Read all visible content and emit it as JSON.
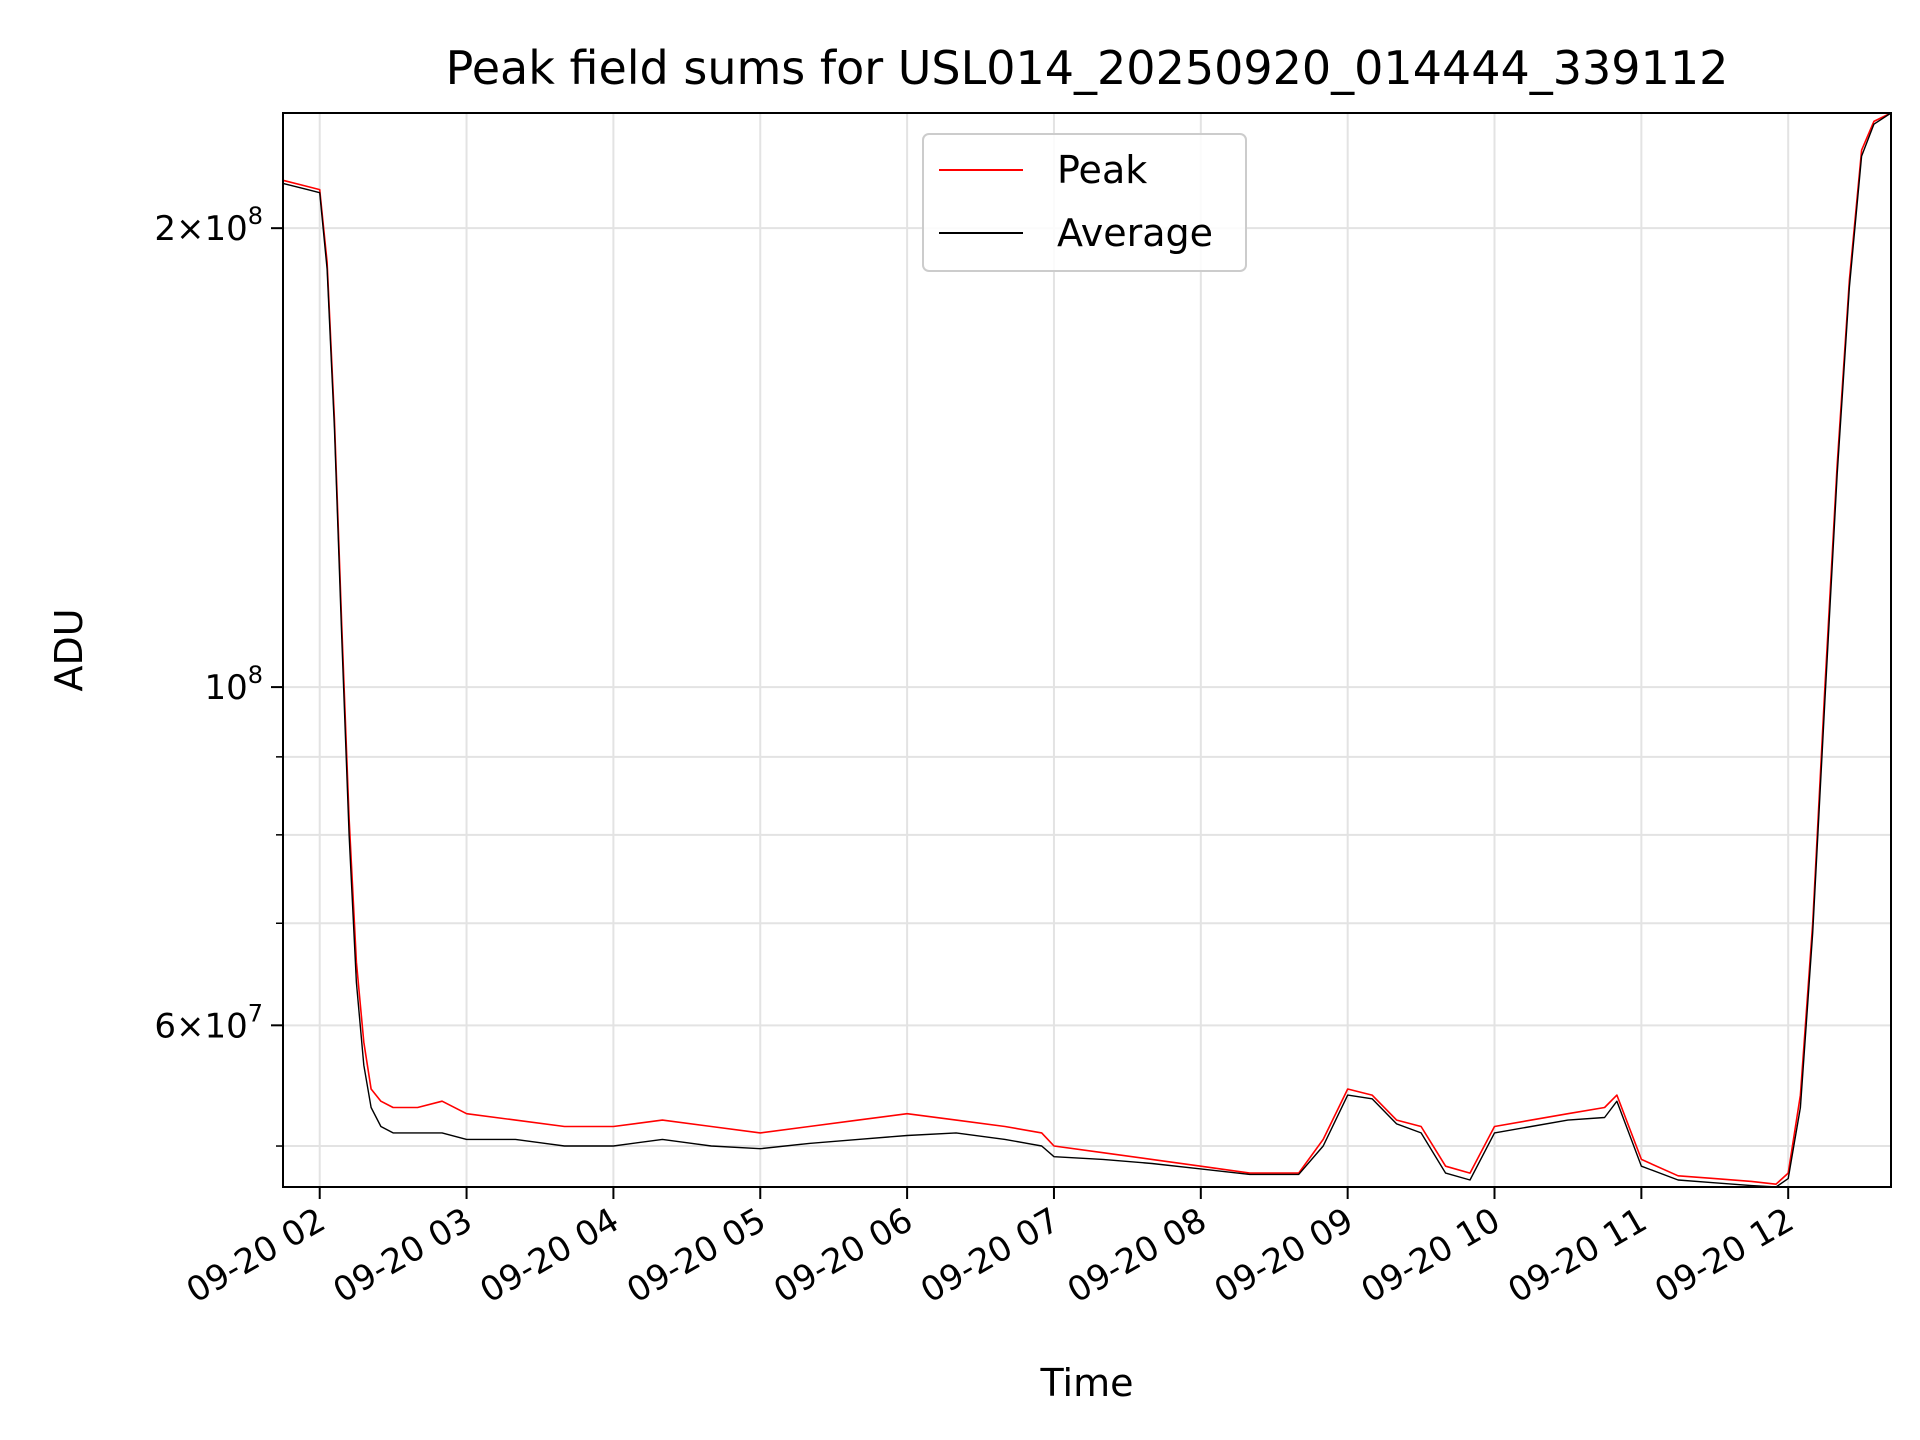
{
  "chart_data": {
    "type": "line",
    "title": "Peak field sums for USL014_20250920_014444_339112",
    "xlabel": "Time",
    "ylabel": "ADU",
    "yscale": "log",
    "ylim": [
      47000000,
      238000000
    ],
    "xlim": [
      "2025-09-20 01:45",
      "2025-09-20 12:42"
    ],
    "grid": true,
    "legend_position": "upper center",
    "x_tick_labels": [
      "09-20 02",
      "09-20 03",
      "09-20 04",
      "09-20 05",
      "09-20 06",
      "09-20 07",
      "09-20 08",
      "09-20 09",
      "09-20 10",
      "09-20 11",
      "09-20 12"
    ],
    "x_tick_values": [
      "2025-09-20 02:00",
      "2025-09-20 03:00",
      "2025-09-20 04:00",
      "2025-09-20 05:00",
      "2025-09-20 06:00",
      "2025-09-20 07:00",
      "2025-09-20 08:00",
      "2025-09-20 09:00",
      "2025-09-20 10:00",
      "2025-09-20 11:00",
      "2025-09-20 12:00"
    ],
    "y_major_ticks": [
      {
        "value": 200000000,
        "mantissa": "2",
        "exponent": "8"
      },
      {
        "value": 100000000,
        "mantissa": "",
        "exponent": "8"
      },
      {
        "value": 60000000,
        "mantissa": "6",
        "exponent": "7"
      }
    ],
    "y_minor_ticks": [
      50000000,
      70000000,
      80000000,
      90000000
    ],
    "series": [
      {
        "name": "Peak",
        "color": "#ff0000",
        "x": [
          "2025-09-20 01:45",
          "2025-09-20 01:55",
          "2025-09-20 02:00",
          "2025-09-20 02:03",
          "2025-09-20 02:06",
          "2025-09-20 02:09",
          "2025-09-20 02:12",
          "2025-09-20 02:15",
          "2025-09-20 02:18",
          "2025-09-20 02:21",
          "2025-09-20 02:25",
          "2025-09-20 02:30",
          "2025-09-20 02:40",
          "2025-09-20 02:50",
          "2025-09-20 03:00",
          "2025-09-20 03:20",
          "2025-09-20 03:40",
          "2025-09-20 04:00",
          "2025-09-20 04:20",
          "2025-09-20 04:40",
          "2025-09-20 05:00",
          "2025-09-20 05:20",
          "2025-09-20 05:40",
          "2025-09-20 06:00",
          "2025-09-20 06:20",
          "2025-09-20 06:40",
          "2025-09-20 06:55",
          "2025-09-20 07:00",
          "2025-09-20 07:20",
          "2025-09-20 07:40",
          "2025-09-20 08:00",
          "2025-09-20 08:20",
          "2025-09-20 08:40",
          "2025-09-20 08:50",
          "2025-09-20 09:00",
          "2025-09-20 09:10",
          "2025-09-20 09:20",
          "2025-09-20 09:30",
          "2025-09-20 09:40",
          "2025-09-20 09:50",
          "2025-09-20 10:00",
          "2025-09-20 10:15",
          "2025-09-20 10:30",
          "2025-09-20 10:45",
          "2025-09-20 10:50",
          "2025-09-20 11:00",
          "2025-09-20 11:15",
          "2025-09-20 11:30",
          "2025-09-20 11:45",
          "2025-09-20 11:55",
          "2025-09-20 12:00",
          "2025-09-20 12:05",
          "2025-09-20 12:10",
          "2025-09-20 12:15",
          "2025-09-20 12:20",
          "2025-09-20 12:25",
          "2025-09-20 12:30",
          "2025-09-20 12:35",
          "2025-09-20 12:42"
        ],
        "y": [
          215000000,
          213000000,
          212000000,
          190000000,
          150000000,
          110000000,
          82000000,
          66000000,
          58500000,
          54500000,
          53500000,
          53000000,
          53000000,
          53500000,
          52500000,
          52000000,
          51500000,
          51500000,
          52000000,
          51500000,
          51000000,
          51500000,
          52000000,
          52500000,
          52000000,
          51500000,
          51000000,
          50000000,
          49500000,
          49000000,
          48500000,
          48000000,
          48000000,
          50500000,
          54500000,
          54000000,
          52000000,
          51500000,
          48500000,
          48000000,
          51500000,
          52000000,
          52500000,
          53000000,
          54000000,
          49000000,
          47800000,
          47600000,
          47400000,
          47200000,
          48000000,
          54000000,
          70000000,
          100000000,
          140000000,
          185000000,
          225000000,
          235000000,
          238000000
        ]
      },
      {
        "name": "Average",
        "color": "#000000",
        "x": [
          "2025-09-20 01:45",
          "2025-09-20 01:55",
          "2025-09-20 02:00",
          "2025-09-20 02:03",
          "2025-09-20 02:06",
          "2025-09-20 02:09",
          "2025-09-20 02:12",
          "2025-09-20 02:15",
          "2025-09-20 02:18",
          "2025-09-20 02:21",
          "2025-09-20 02:25",
          "2025-09-20 02:30",
          "2025-09-20 02:40",
          "2025-09-20 02:50",
          "2025-09-20 03:00",
          "2025-09-20 03:20",
          "2025-09-20 03:40",
          "2025-09-20 04:00",
          "2025-09-20 04:20",
          "2025-09-20 04:40",
          "2025-09-20 05:00",
          "2025-09-20 05:20",
          "2025-09-20 05:40",
          "2025-09-20 06:00",
          "2025-09-20 06:20",
          "2025-09-20 06:40",
          "2025-09-20 06:55",
          "2025-09-20 07:00",
          "2025-09-20 07:20",
          "2025-09-20 07:40",
          "2025-09-20 08:00",
          "2025-09-20 08:20",
          "2025-09-20 08:40",
          "2025-09-20 08:50",
          "2025-09-20 09:00",
          "2025-09-20 09:10",
          "2025-09-20 09:20",
          "2025-09-20 09:30",
          "2025-09-20 09:40",
          "2025-09-20 09:50",
          "2025-09-20 10:00",
          "2025-09-20 10:15",
          "2025-09-20 10:30",
          "2025-09-20 10:45",
          "2025-09-20 10:50",
          "2025-09-20 11:00",
          "2025-09-20 11:15",
          "2025-09-20 11:30",
          "2025-09-20 11:45",
          "2025-09-20 11:55",
          "2025-09-20 12:00",
          "2025-09-20 12:05",
          "2025-09-20 12:10",
          "2025-09-20 12:15",
          "2025-09-20 12:20",
          "2025-09-20 12:25",
          "2025-09-20 12:30",
          "2025-09-20 12:35",
          "2025-09-20 12:42"
        ],
        "y": [
          214000000,
          212000000,
          211000000,
          188000000,
          148000000,
          108000000,
          80000000,
          64000000,
          56500000,
          53000000,
          51500000,
          51000000,
          51000000,
          51000000,
          50500000,
          50500000,
          50000000,
          50000000,
          50500000,
          50000000,
          49800000,
          50200000,
          50500000,
          50800000,
          51000000,
          50500000,
          50000000,
          49200000,
          49000000,
          48700000,
          48300000,
          47900000,
          47900000,
          50000000,
          54000000,
          53700000,
          51700000,
          51000000,
          48000000,
          47500000,
          51000000,
          51500000,
          52000000,
          52200000,
          53500000,
          48500000,
          47500000,
          47300000,
          47100000,
          47000000,
          47600000,
          53000000,
          69000000,
          98000000,
          138000000,
          183000000,
          223000000,
          234000000,
          238000000
        ]
      }
    ]
  }
}
